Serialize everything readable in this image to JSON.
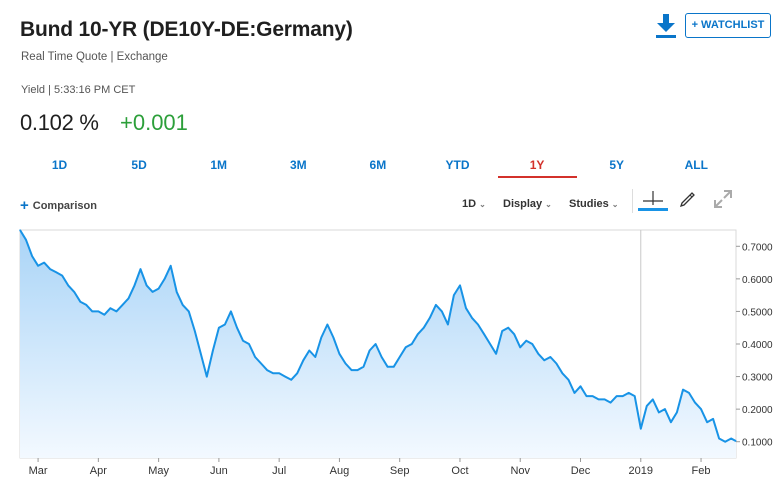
{
  "header": {
    "title": "Bund 10-YR",
    "symbol": "(DE10Y-DE:Germany)",
    "subtitle": "Real Time Quote | Exchange",
    "yield_line": "Yield | 5:33:16 PM CET",
    "price": "0.102 %",
    "change": "+0.001",
    "watchlist_label": "+ WATCHLIST",
    "download_icon": "download-icon"
  },
  "colors": {
    "accent": "#0a75c9",
    "active_tab": "#d3312b",
    "positive": "#2c9f3a",
    "line": "#1893e6",
    "fill": "#bfe0fb"
  },
  "tabs": [
    {
      "label": "1D",
      "active": false
    },
    {
      "label": "5D",
      "active": false
    },
    {
      "label": "1M",
      "active": false
    },
    {
      "label": "3M",
      "active": false
    },
    {
      "label": "6M",
      "active": false
    },
    {
      "label": "YTD",
      "active": false
    },
    {
      "label": "1Y",
      "active": true
    },
    {
      "label": "5Y",
      "active": false
    },
    {
      "label": "ALL",
      "active": false
    }
  ],
  "toolbar": {
    "comparison_label": "Comparison",
    "interval_label": "1D",
    "display_label": "Display",
    "studies_label": "Studies",
    "icons": [
      "crosshair-icon",
      "pencil-icon",
      "expand-icon"
    ]
  },
  "chart_data": {
    "type": "area",
    "grid": false,
    "ylim": [
      0.05,
      0.75
    ],
    "y_ticks": [
      "0.7000",
      "0.6000",
      "0.5000",
      "0.4000",
      "0.3000",
      "0.2000",
      "0.1000"
    ],
    "y_tick_values": [
      0.7,
      0.6,
      0.5,
      0.4,
      0.3,
      0.2,
      0.1
    ],
    "x_ticks": [
      "Mar",
      "Apr",
      "May",
      "Jun",
      "Jul",
      "Aug",
      "Sep",
      "Oct",
      "Nov",
      "Dec",
      "2019",
      "Feb"
    ],
    "x_tick_positions": [
      0.3,
      1.3,
      2.3,
      3.3,
      4.3,
      5.3,
      6.3,
      7.3,
      8.3,
      9.3,
      10.3,
      11.3
    ],
    "year_divider_x": 10.3,
    "x_range": [
      0,
      11.88
    ],
    "x": [
      0.0,
      0.1,
      0.2,
      0.3,
      0.4,
      0.5,
      0.6,
      0.7,
      0.8,
      0.9,
      1.0,
      1.1,
      1.2,
      1.3,
      1.4,
      1.5,
      1.6,
      1.7,
      1.8,
      1.9,
      2.0,
      2.1,
      2.2,
      2.3,
      2.4,
      2.5,
      2.6,
      2.7,
      2.8,
      2.9,
      3.0,
      3.1,
      3.2,
      3.3,
      3.4,
      3.5,
      3.6,
      3.7,
      3.8,
      3.9,
      4.0,
      4.1,
      4.2,
      4.3,
      4.4,
      4.5,
      4.6,
      4.7,
      4.8,
      4.9,
      5.0,
      5.1,
      5.2,
      5.3,
      5.4,
      5.5,
      5.6,
      5.7,
      5.8,
      5.9,
      6.0,
      6.1,
      6.2,
      6.3,
      6.4,
      6.5,
      6.6,
      6.7,
      6.8,
      6.9,
      7.0,
      7.1,
      7.2,
      7.3,
      7.4,
      7.5,
      7.6,
      7.7,
      7.8,
      7.9,
      8.0,
      8.1,
      8.2,
      8.3,
      8.4,
      8.5,
      8.6,
      8.7,
      8.8,
      8.9,
      9.0,
      9.1,
      9.2,
      9.3,
      9.4,
      9.5,
      9.6,
      9.7,
      9.8,
      9.9,
      10.0,
      10.1,
      10.2,
      10.3,
      10.4,
      10.5,
      10.6,
      10.7,
      10.8,
      10.9,
      11.0,
      11.1,
      11.2,
      11.3,
      11.4,
      11.5,
      11.6,
      11.7,
      11.8,
      11.88
    ],
    "series": [
      {
        "values": [
          0.75,
          0.72,
          0.67,
          0.64,
          0.65,
          0.63,
          0.62,
          0.61,
          0.58,
          0.56,
          0.53,
          0.52,
          0.5,
          0.5,
          0.49,
          0.51,
          0.5,
          0.52,
          0.54,
          0.58,
          0.63,
          0.58,
          0.56,
          0.57,
          0.6,
          0.64,
          0.56,
          0.52,
          0.5,
          0.44,
          0.37,
          0.3,
          0.38,
          0.45,
          0.46,
          0.5,
          0.45,
          0.41,
          0.4,
          0.36,
          0.34,
          0.32,
          0.31,
          0.31,
          0.3,
          0.29,
          0.31,
          0.35,
          0.38,
          0.36,
          0.42,
          0.46,
          0.42,
          0.37,
          0.34,
          0.32,
          0.32,
          0.33,
          0.38,
          0.4,
          0.36,
          0.33,
          0.33,
          0.36,
          0.39,
          0.4,
          0.43,
          0.45,
          0.48,
          0.52,
          0.5,
          0.46,
          0.55,
          0.58,
          0.51,
          0.48,
          0.46,
          0.43,
          0.4,
          0.37,
          0.44,
          0.45,
          0.43,
          0.39,
          0.41,
          0.4,
          0.37,
          0.35,
          0.36,
          0.34,
          0.31,
          0.29,
          0.25,
          0.27,
          0.24,
          0.24,
          0.23,
          0.23,
          0.22,
          0.24,
          0.24,
          0.25,
          0.24,
          0.14,
          0.21,
          0.23,
          0.19,
          0.2,
          0.16,
          0.19,
          0.26,
          0.25,
          0.22,
          0.2,
          0.16,
          0.17,
          0.11,
          0.1,
          0.11,
          0.102
        ]
      }
    ]
  }
}
